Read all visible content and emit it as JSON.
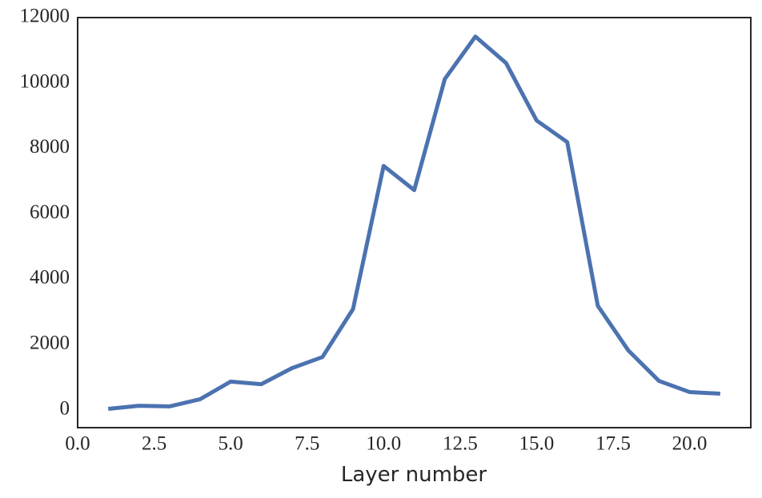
{
  "chart_data": {
    "type": "line",
    "x_label": "Layer number",
    "x": [
      1,
      2,
      3,
      4,
      5,
      6,
      7,
      8,
      9,
      10,
      11,
      12,
      13,
      14,
      15,
      16,
      17,
      18,
      19,
      20,
      21
    ],
    "series": [
      {
        "color": "#4c72b0",
        "values": [
          25,
          120,
          100,
          320,
          860,
          780,
          1270,
          1610,
          3080,
          7460,
          6720,
          10120,
          11420,
          10610,
          8850,
          8190,
          3180,
          1810,
          880,
          540,
          490
        ]
      }
    ],
    "xlim": [
      0,
      22
    ],
    "xticks": [
      {
        "value": 0,
        "label": "0.0"
      },
      {
        "value": 2.5,
        "label": "2.5"
      },
      {
        "value": 5,
        "label": "5.0"
      },
      {
        "value": 7.5,
        "label": "7.5"
      },
      {
        "value": 10,
        "label": "10.0"
      },
      {
        "value": 12.5,
        "label": "12.5"
      },
      {
        "value": 15,
        "label": "15.0"
      },
      {
        "value": 17.5,
        "label": "17.5"
      },
      {
        "value": 20,
        "label": "20.0"
      }
    ],
    "ylim": [
      -550,
      12000
    ],
    "yticks": [
      0,
      2000,
      4000,
      6000,
      8000,
      10000,
      12000
    ],
    "grid": false
  }
}
